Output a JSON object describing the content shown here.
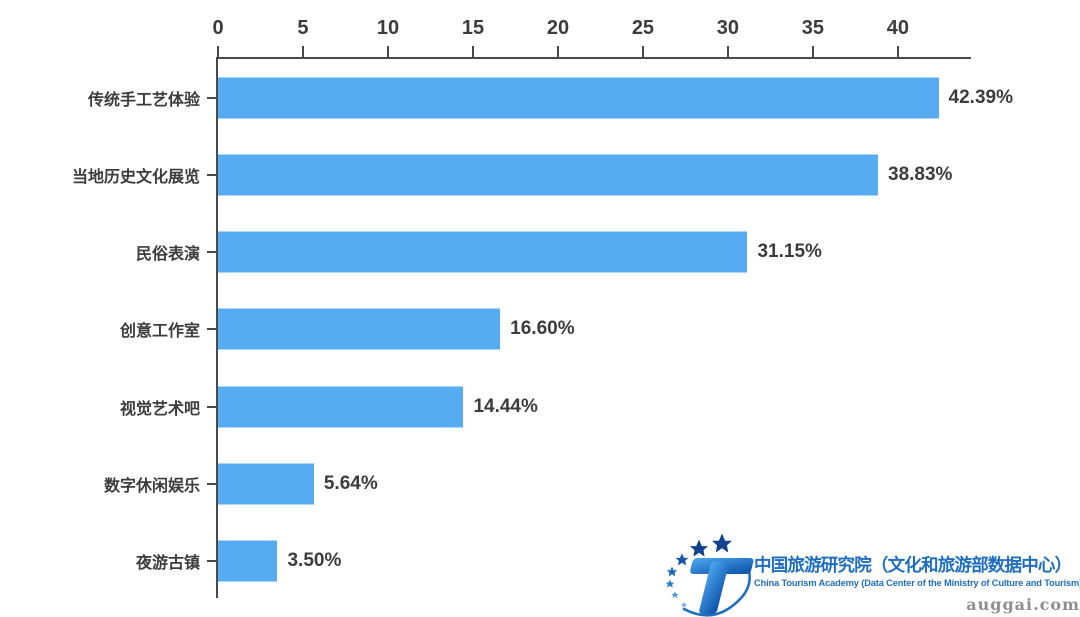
{
  "chart_data": {
    "type": "bar",
    "orientation": "horizontal",
    "title": "",
    "xlabel": "",
    "ylabel": "",
    "categories": [
      "传统手工艺体验",
      "当地历史文化展览",
      "民俗表演",
      "创意工作室",
      "视觉艺术吧",
      "数字休闲娱乐",
      "夜游古镇"
    ],
    "values": [
      42.39,
      38.83,
      31.15,
      16.6,
      14.44,
      5.64,
      3.5
    ],
    "value_labels": [
      "42.39%",
      "38.83%",
      "31.15%",
      "16.60%",
      "14.44%",
      "5.64%",
      "3.50%"
    ],
    "x_ticks": [
      0,
      5,
      10,
      15,
      20,
      25,
      30,
      35,
      40
    ],
    "xlim": [
      0,
      44.3
    ],
    "grid": false,
    "legend": false,
    "bar_color": "#57ABF1",
    "axis_color": "#4A4A4A",
    "text_color": "#3C3C3C"
  },
  "branding": {
    "logo_text_cn": "中国旅游研究院（文化和旅游部数据中心）",
    "logo_text_en": "China Tourism Academy (Data Center of the Ministry of Culture and Tourism)",
    "logo_color": "#1E6FC0"
  },
  "watermark": "auggai.com"
}
